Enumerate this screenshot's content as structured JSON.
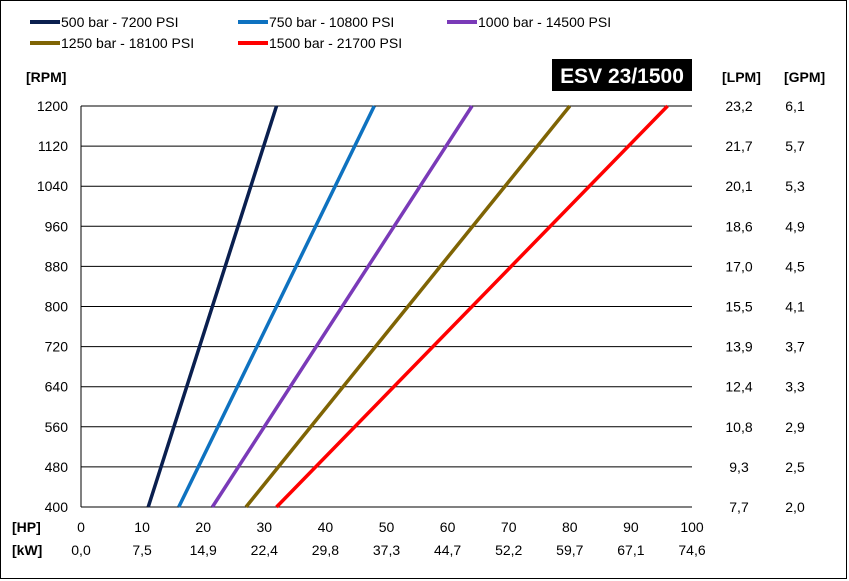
{
  "chart_data": {
    "type": "line",
    "badge": "ESV 23/1500",
    "y_unit": "[RPM]",
    "lpm_unit": "[LPM]",
    "gpm_unit": "[GPM]",
    "hp_unit": "[HP]",
    "kw_unit": "[kW]",
    "ylim": [
      400,
      1200
    ],
    "xlim": [
      0,
      100
    ],
    "y_ticks": [
      1200,
      1120,
      1040,
      960,
      880,
      800,
      720,
      640,
      560,
      480,
      400
    ],
    "lpm_ticks": [
      "23,2",
      "21,7",
      "20,1",
      "18,6",
      "17,0",
      "15,5",
      "13,9",
      "12,4",
      "10,8",
      "9,3",
      "7,7"
    ],
    "gpm_ticks": [
      "6,1",
      "5,7",
      "5,3",
      "4,9",
      "4,5",
      "4,1",
      "3,7",
      "3,3",
      "2,9",
      "2,5",
      "2,0"
    ],
    "hp_ticks": [
      0,
      10,
      20,
      30,
      40,
      50,
      60,
      70,
      80,
      90,
      100
    ],
    "kw_ticks": [
      "0,0",
      "7,5",
      "14,9",
      "22,4",
      "29,8",
      "37,3",
      "44,7",
      "52,2",
      "59,7",
      "67,1",
      "74,6"
    ],
    "grid": "horizontal",
    "legend_position": "top",
    "series": [
      {
        "name": "500 bar - 7200 PSI",
        "color": "#0a1f4f",
        "x": [
          11,
          32
        ],
        "y": [
          400,
          1200
        ]
      },
      {
        "name": "750 bar - 10800 PSI",
        "color": "#0e72c0",
        "x": [
          16,
          48
        ],
        "y": [
          400,
          1200
        ]
      },
      {
        "name": "1000 bar - 14500 PSI",
        "color": "#7a3ab8",
        "x": [
          21.5,
          64
        ],
        "y": [
          400,
          1200
        ]
      },
      {
        "name": "1250 bar - 18100 PSI",
        "color": "#7f6404",
        "x": [
          27,
          80
        ],
        "y": [
          400,
          1200
        ]
      },
      {
        "name": "1500 bar - 21700 PSI",
        "color": "#ff0000",
        "x": [
          32,
          96
        ],
        "y": [
          400,
          1200
        ]
      }
    ]
  }
}
